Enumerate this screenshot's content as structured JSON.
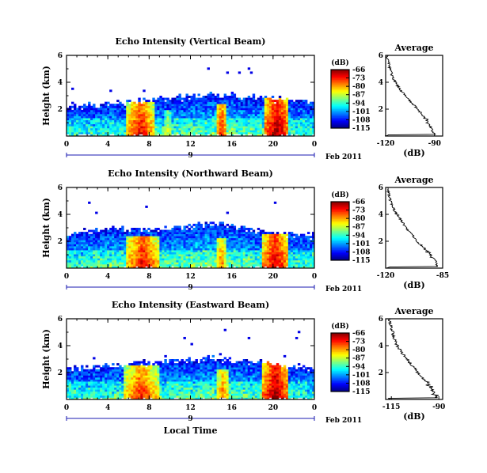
{
  "chart_data": [
    {
      "type": "heatmap",
      "title": "Echo Intensity (Vertical Beam)",
      "ylabel": "Height (km)",
      "xlabel": "",
      "x_ticks": [
        "0",
        "4",
        "8",
        "12",
        "16",
        "20",
        "0"
      ],
      "y_ticks": [
        "2",
        "4",
        "6"
      ],
      "xlim": [
        0,
        24
      ],
      "ylim": [
        0,
        6
      ],
      "date_marker": "9",
      "date_label": "Feb 2011",
      "colorbar": {
        "label": "(dB)",
        "ticks": [
          "-66",
          "-73",
          "-80",
          "-87",
          "-94",
          "-101",
          "-108",
          "-115"
        ],
        "range": [
          -115,
          -66
        ]
      },
      "cloud_top_km": [
        [
          0,
          2.3
        ],
        [
          2,
          2.3
        ],
        [
          4,
          2.4
        ],
        [
          6,
          2.6
        ],
        [
          8,
          2.8
        ],
        [
          10,
          2.9
        ],
        [
          12,
          3.0
        ],
        [
          14,
          3.2
        ],
        [
          16,
          3.1
        ],
        [
          18,
          3.0
        ],
        [
          20,
          2.9
        ],
        [
          22,
          2.7
        ],
        [
          24,
          2.6
        ]
      ],
      "intense_cores": [
        {
          "x": [
            5.8,
            8.5
          ],
          "top_km": 2.5,
          "peak_db": -70
        },
        {
          "x": [
            9.5,
            10.2
          ],
          "top_km": 2.0,
          "peak_db": -84
        },
        {
          "x": [
            14.5,
            15.5
          ],
          "top_km": 2.4,
          "peak_db": -72
        },
        {
          "x": [
            19.2,
            21.5
          ],
          "top_km": 2.9,
          "peak_db": -66
        }
      ],
      "average_profile": {
        "title": "Average",
        "xlabel": "(dB)",
        "x_ticks": [
          "-120",
          "-90"
        ],
        "xlim": [
          -120,
          -85
        ],
        "y_ticks": [
          "2",
          "4",
          "6"
        ],
        "ylim": [
          0,
          6
        ],
        "points": [
          [
            -90,
            0.1
          ],
          [
            -92,
            0.6
          ],
          [
            -95,
            1.2
          ],
          [
            -99,
            1.8
          ],
          [
            -104,
            2.5
          ],
          [
            -108,
            3.0
          ],
          [
            -112,
            3.6
          ],
          [
            -115,
            4.2
          ],
          [
            -117,
            4.8
          ],
          [
            -118,
            5.4
          ],
          [
            -119,
            5.9
          ]
        ]
      }
    },
    {
      "type": "heatmap",
      "title": "Echo Intensity (Northward Beam)",
      "ylabel": "Height (km)",
      "xlabel": "",
      "x_ticks": [
        "0",
        "4",
        "8",
        "12",
        "16",
        "20",
        "0"
      ],
      "y_ticks": [
        "2",
        "4",
        "6"
      ],
      "xlim": [
        0,
        24
      ],
      "ylim": [
        0,
        6
      ],
      "date_marker": "9",
      "date_label": "Feb 2011",
      "colorbar": {
        "label": "(dB)",
        "ticks": [
          "-66",
          "-73",
          "-80",
          "-87",
          "-94",
          "-101",
          "-108",
          "-115"
        ],
        "range": [
          -115,
          -66
        ]
      },
      "cloud_top_km": [
        [
          0,
          2.5
        ],
        [
          2,
          2.8
        ],
        [
          4,
          3.0
        ],
        [
          6,
          3.0
        ],
        [
          8,
          3.1
        ],
        [
          10,
          3.0
        ],
        [
          12,
          3.3
        ],
        [
          14,
          3.5
        ],
        [
          16,
          3.3
        ],
        [
          18,
          3.0
        ],
        [
          20,
          2.8
        ],
        [
          22,
          2.6
        ],
        [
          24,
          2.5
        ]
      ],
      "intense_cores": [
        {
          "x": [
            5.8,
            9.0
          ],
          "top_km": 2.4,
          "peak_db": -70
        },
        {
          "x": [
            14.5,
            15.5
          ],
          "top_km": 2.2,
          "peak_db": -76
        },
        {
          "x": [
            19.0,
            21.5
          ],
          "top_km": 2.6,
          "peak_db": -68
        }
      ],
      "average_profile": {
        "title": "Average",
        "xlabel": "(dB)",
        "x_ticks": [
          "-120",
          "-85"
        ],
        "xlim": [
          -120,
          -85
        ],
        "y_ticks": [
          "2",
          "4",
          "6"
        ],
        "ylim": [
          0,
          6
        ],
        "points": [
          [
            -88,
            0.1
          ],
          [
            -90,
            0.6
          ],
          [
            -94,
            1.2
          ],
          [
            -99,
            1.8
          ],
          [
            -104,
            2.5
          ],
          [
            -108,
            3.1
          ],
          [
            -112,
            3.8
          ],
          [
            -115,
            4.4
          ],
          [
            -117,
            5.0
          ],
          [
            -119,
            5.9
          ]
        ]
      }
    },
    {
      "type": "heatmap",
      "title": "Echo Intensity (Eastward Beam)",
      "ylabel": "Height (km)",
      "xlabel": "Local Time",
      "x_ticks": [
        "0",
        "4",
        "8",
        "12",
        "16",
        "20",
        "0"
      ],
      "y_ticks": [
        "2",
        "4",
        "6"
      ],
      "xlim": [
        0,
        24
      ],
      "ylim": [
        0,
        6
      ],
      "date_marker": "9",
      "date_label": "Feb 2011",
      "colorbar": {
        "label": "(dB)",
        "ticks": [
          "-66",
          "-73",
          "-80",
          "-87",
          "-94",
          "-101",
          "-108",
          "-115"
        ],
        "range": [
          -115,
          -66
        ]
      },
      "cloud_top_km": [
        [
          0,
          2.3
        ],
        [
          2,
          2.5
        ],
        [
          4,
          2.6
        ],
        [
          6,
          2.7
        ],
        [
          8,
          2.8
        ],
        [
          10,
          2.9
        ],
        [
          12,
          3.0
        ],
        [
          14,
          3.2
        ],
        [
          16,
          3.0
        ],
        [
          18,
          2.9
        ],
        [
          20,
          2.7
        ],
        [
          22,
          2.5
        ],
        [
          24,
          2.4
        ]
      ],
      "intense_cores": [
        {
          "x": [
            5.5,
            9.0
          ],
          "top_km": 2.5,
          "peak_db": -72
        },
        {
          "x": [
            14.5,
            15.8
          ],
          "top_km": 2.3,
          "peak_db": -76
        },
        {
          "x": [
            19.0,
            21.5
          ],
          "top_km": 2.9,
          "peak_db": -66
        }
      ],
      "average_profile": {
        "title": "Average",
        "xlabel": "(dB)",
        "x_ticks": [
          "-115",
          "-90"
        ],
        "xlim": [
          -118,
          -88
        ],
        "y_ticks": [
          "2",
          "4",
          "6"
        ],
        "ylim": [
          0,
          6
        ],
        "points": [
          [
            -91,
            0.1
          ],
          [
            -93,
            0.6
          ],
          [
            -96,
            1.2
          ],
          [
            -100,
            1.8
          ],
          [
            -104,
            2.5
          ],
          [
            -108,
            3.2
          ],
          [
            -111,
            3.8
          ],
          [
            -113,
            4.3
          ],
          [
            -114,
            4.8
          ],
          [
            -115,
            5.4
          ],
          [
            -116,
            5.9
          ]
        ]
      }
    }
  ]
}
